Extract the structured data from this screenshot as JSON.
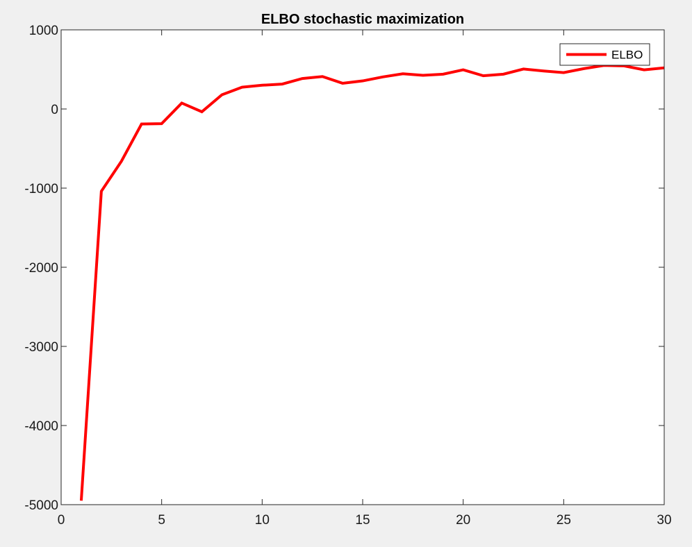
{
  "chart_data": {
    "type": "line",
    "title": "ELBO stochastic maximization",
    "xlabel": "",
    "ylabel": "",
    "xlim": [
      0,
      30
    ],
    "ylim": [
      -5000,
      1000
    ],
    "xticks": [
      0,
      5,
      10,
      15,
      20,
      25,
      30
    ],
    "yticks": [
      -5000,
      -4000,
      -3000,
      -2000,
      -1000,
      0,
      1000
    ],
    "grid": false,
    "legend_position": "top-right",
    "series": [
      {
        "name": "ELBO",
        "color": "#ff0000",
        "x": [
          1,
          2,
          3,
          4,
          5,
          6,
          7,
          8,
          9,
          10,
          11,
          12,
          13,
          14,
          15,
          16,
          17,
          18,
          19,
          20,
          21,
          22,
          23,
          24,
          25,
          26,
          27,
          28,
          29,
          30
        ],
        "y": [
          -4950,
          -1040,
          -660,
          -190,
          -185,
          75,
          -35,
          180,
          275,
          300,
          315,
          385,
          410,
          325,
          355,
          405,
          445,
          425,
          440,
          495,
          420,
          440,
          505,
          480,
          460,
          510,
          550,
          545,
          495,
          520
        ]
      }
    ]
  }
}
